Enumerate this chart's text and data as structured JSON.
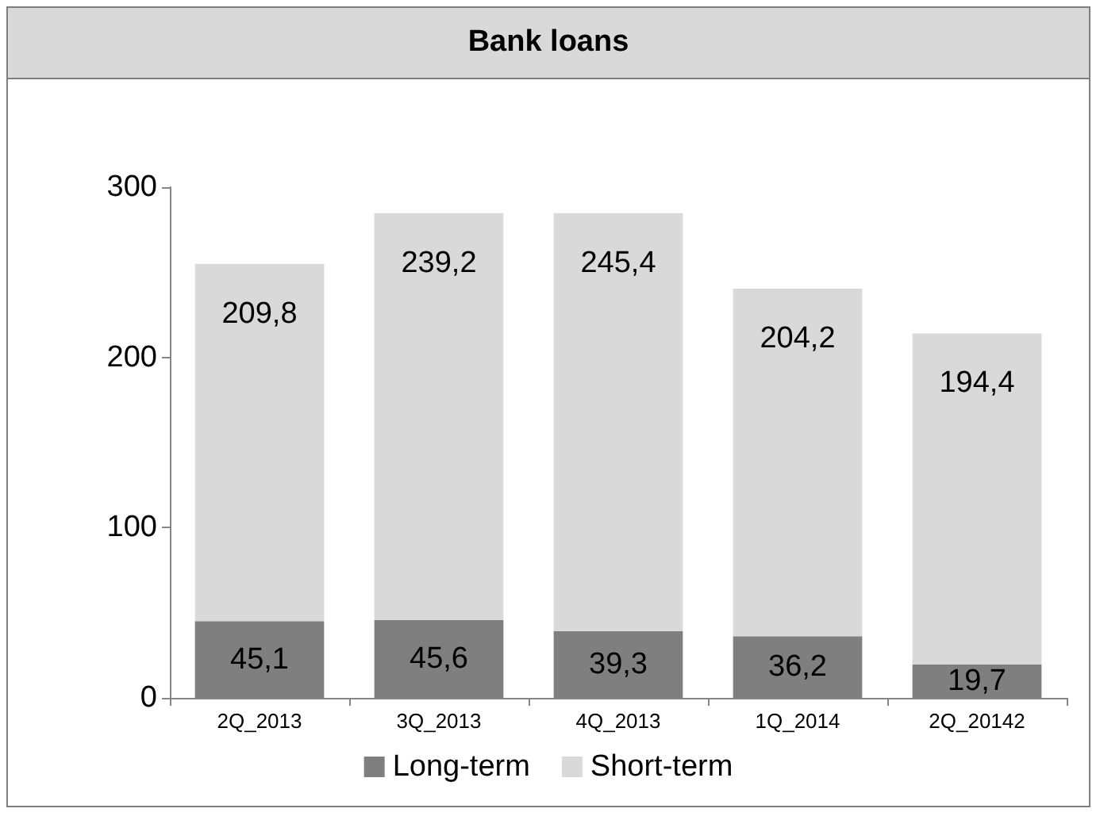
{
  "chart_data": {
    "type": "bar",
    "title": "Bank loans",
    "stacked": true,
    "categories": [
      "2Q_2013",
      "3Q_2013",
      "4Q_2013",
      "1Q_2014",
      "2Q_20142"
    ],
    "series": [
      {
        "name": "Long-term",
        "color": "#7f7f7f",
        "values": [
          45.1,
          45.6,
          39.3,
          36.2,
          19.7
        ],
        "value_labels": [
          "45,1",
          "45,6",
          "39,3",
          "36,2",
          "19,7"
        ]
      },
      {
        "name": "Short-term",
        "color": "#d9d9d9",
        "values": [
          209.8,
          239.2,
          245.4,
          204.2,
          194.4
        ],
        "value_labels": [
          "209,8",
          "239,2",
          "245,4",
          "204,2",
          "194,4"
        ]
      }
    ],
    "ylim": [
      0,
      300
    ],
    "yticks": [
      0,
      100,
      200,
      300
    ],
    "grid": false,
    "legend": "bottom"
  }
}
